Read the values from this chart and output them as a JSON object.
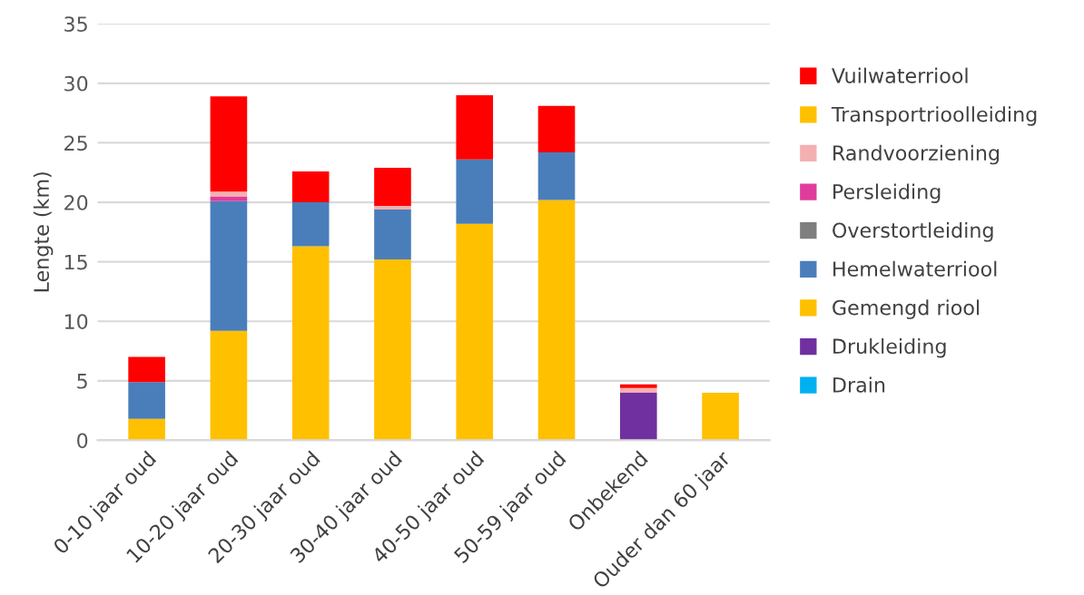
{
  "chart_data": {
    "type": "bar",
    "stacked": true,
    "ylabel": "Lengte (km)",
    "categories": [
      "0-10 jaar oud",
      "10-20 jaar oud",
      "20-30 jaar oud",
      "30-40 jaar oud",
      "40-50 jaar oud",
      "50-59 jaar oud",
      "Onbekend",
      "Ouder dan 60 jaar"
    ],
    "series": [
      {
        "name": "Drain",
        "color": "#00b0f0",
        "values": [
          null,
          null,
          null,
          null,
          null,
          null,
          null,
          null
        ]
      },
      {
        "name": "Drukleiding",
        "color": "#7030a0",
        "values": [
          null,
          null,
          null,
          null,
          null,
          null,
          4.0,
          null
        ]
      },
      {
        "name": "Gemengd riool",
        "color": "#ffc000",
        "values": [
          1.8,
          9.2,
          16.3,
          15.2,
          18.2,
          20.2,
          null,
          4.0
        ]
      },
      {
        "name": "Hemelwaterriool",
        "color": "#4a7ebb",
        "values": [
          3.1,
          10.9,
          3.7,
          4.2,
          5.4,
          4.0,
          null,
          null
        ]
      },
      {
        "name": "Overstortleiding",
        "color": "#7f7f7f",
        "values": [
          null,
          null,
          null,
          null,
          null,
          null,
          null,
          null
        ]
      },
      {
        "name": "Persleiding",
        "color": "#e03c9c",
        "values": [
          null,
          0.4,
          null,
          null,
          null,
          null,
          null,
          null
        ]
      },
      {
        "name": "Randvoorziening",
        "color": "#f4b0b0",
        "values": [
          null,
          0.4,
          null,
          0.3,
          null,
          null,
          0.4,
          null
        ]
      },
      {
        "name": "Transportrioolleiding",
        "color": "#ffc000",
        "values": [
          null,
          null,
          null,
          null,
          null,
          null,
          null,
          null
        ]
      },
      {
        "name": "Vuilwaterriool",
        "color": "#ff0000",
        "values": [
          2.1,
          8.0,
          2.6,
          3.2,
          5.4,
          3.9,
          0.3,
          null
        ]
      }
    ],
    "ylim": [
      0,
      35
    ],
    "yticks": [
      0,
      5,
      10,
      15,
      20,
      25,
      30,
      35
    ],
    "grid": "y",
    "legend": "right"
  }
}
